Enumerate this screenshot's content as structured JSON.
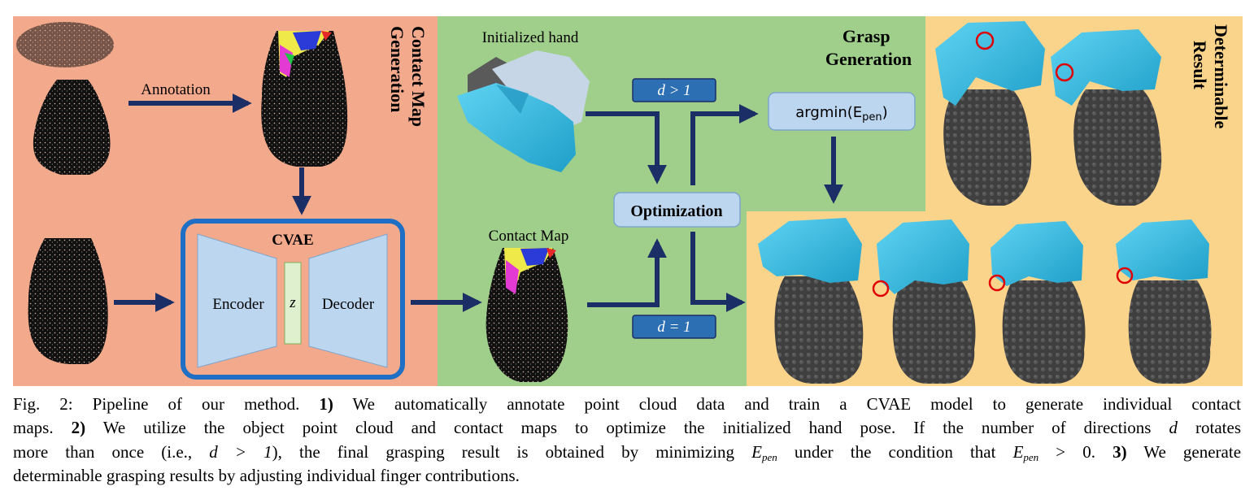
{
  "figure": {
    "stages": {
      "contact_map_generation_line1": "Contact Map",
      "contact_map_generation_line2": "Generation",
      "grasp_generation_line1": "Grasp",
      "grasp_generation_line2": "Generation",
      "determinable_result_line1": "Determinable",
      "determinable_result_line2": "Result"
    },
    "labels": {
      "annotation": "Annotation",
      "cvae": "CVAE",
      "encoder": "Encoder",
      "z": "z",
      "decoder": "Decoder",
      "initialized_hand": "Initialized hand",
      "contact_map": "Contact Map",
      "d_gt_1": "d > 1",
      "d_eq_1": "d = 1",
      "optimization": "Optimization",
      "argmin": "argmin(E",
      "argmin_sub": "pen",
      "argmin_close": ")"
    },
    "colors": {
      "contact_bg": "#f3a98c",
      "grasp_bg": "#9fcf8a",
      "result_bg": "#fbd48c",
      "arrow": "#1c2e66",
      "cvae_border": "#1f6fc4",
      "module_fill": "#bcd6ef",
      "latent_fill": "#dff0cf",
      "hand_color": "#35b9e0"
    },
    "icons": [
      "vase-point-cloud",
      "annotated-vase",
      "hand-mesh",
      "vase-mesh",
      "penetration-circle"
    ]
  },
  "caption": {
    "line1": {
      "fig": "Fig. 2: Pipeline of our method. ",
      "n1": "1)",
      "t1": " We automatically annotate point cloud data and train a CVAE model to generate individual contact"
    },
    "line2": {
      "t1": "maps. ",
      "n2": "2)",
      "t2": " We utilize the object point cloud and contact maps to optimize the initialized hand pose. If the number of directions ",
      "d": "d",
      "t3": " rotates"
    },
    "line3": {
      "t1": "more than once (i.e., ",
      "cond": "d > 1",
      "t2": "), the final grasping result is obtained by minimizing ",
      "e1": "E",
      "e1sub": "pen",
      "t3": " under the condition that ",
      "e2": "E",
      "e2sub": "pen",
      "t4": " > 0. ",
      "n3": "3)",
      "t5": " We generate"
    },
    "line4": {
      "t1": "determinable grasping results by adjusting individual finger contributions."
    }
  }
}
